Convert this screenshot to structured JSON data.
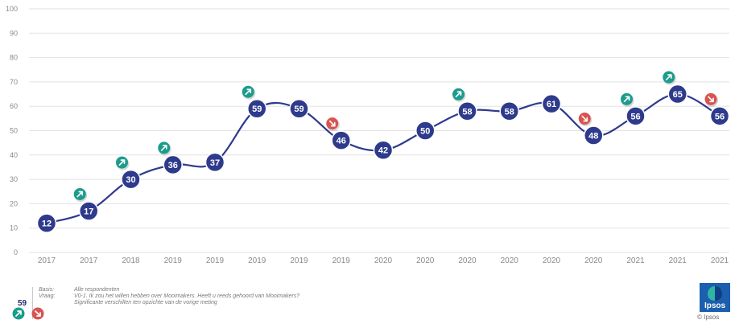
{
  "chart_data": {
    "type": "line",
    "title": "",
    "xlabel": "",
    "ylabel": "",
    "ylim": [
      0,
      100
    ],
    "yticks": [
      0,
      10,
      20,
      30,
      40,
      50,
      60,
      70,
      80,
      90,
      100
    ],
    "grid": true,
    "categories": [
      "2017",
      "2017",
      "2018",
      "2019",
      "2019",
      "2019",
      "2019",
      "2019",
      "2020",
      "2020",
      "2020",
      "2020",
      "2020",
      "2020",
      "2021",
      "2021",
      "2021"
    ],
    "series": [
      {
        "values": [
          12,
          17,
          30,
          36,
          37,
          59,
          59,
          46,
          42,
          50,
          58,
          58,
          61,
          48,
          56,
          65,
          56
        ]
      }
    ],
    "significance": [
      "",
      "up",
      "up",
      "up",
      "",
      "up",
      "",
      "down",
      "",
      "",
      "up",
      "",
      "",
      "down",
      "up",
      "up",
      "down"
    ],
    "colors": {
      "line": "#2e3a8c",
      "marker": "#2e3a8c",
      "up": "#1b9c8c",
      "down": "#d9534f",
      "grid": "#e2e2e2",
      "axis_text": "#8a8a8a"
    }
  },
  "footer": {
    "slide_number": "59",
    "notes": [
      {
        "label": "Basis:",
        "text": "Alle respondenten"
      },
      {
        "label": "Vraag:",
        "text": "V0-1. Ik zou het willen hebben over Mooimakers. Heeft u reeds gehoord van Mooimakers?"
      },
      {
        "label": "",
        "text": "Significante verschillen ten opzichte van de vorige meting"
      }
    ],
    "logo_text": "Ipsos",
    "copyright": "© Ipsos"
  }
}
